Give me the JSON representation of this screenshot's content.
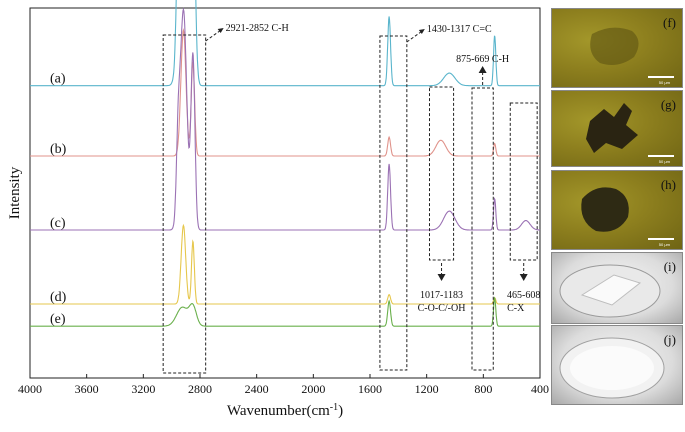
{
  "chart_data": {
    "type": "line",
    "xlabel": "Wavenumber(cm",
    "xlabel_sup": "-1",
    "xlabel_close": ")",
    "ylabel": "Intensity",
    "xlim": [
      4000,
      400
    ],
    "xticks": [
      4000,
      3600,
      3200,
      2800,
      2400,
      2000,
      1600,
      1200,
      800,
      400
    ],
    "series": [
      {
        "name": "(a)",
        "color": "#5ab5cc",
        "offset": 0.79,
        "scale": 0.85,
        "peaks": [
          [
            2917,
            0.68,
            28
          ],
          [
            2850,
            0.6,
            16
          ],
          [
            2955,
            0.26,
            12
          ],
          [
            1465,
            0.22,
            10
          ],
          [
            1040,
            0.04,
            40
          ],
          [
            720,
            0.16,
            8
          ]
        ]
      },
      {
        "name": "(b)",
        "color": "#e0938b",
        "offset": 0.6,
        "scale": 0.85,
        "peaks": [
          [
            2917,
            0.4,
            18
          ],
          [
            2850,
            0.3,
            12
          ],
          [
            1465,
            0.06,
            10
          ],
          [
            1100,
            0.05,
            35
          ],
          [
            720,
            0.04,
            8
          ]
        ]
      },
      {
        "name": "(c)",
        "color": "#9b72b4",
        "offset": 0.4,
        "scale": 0.85,
        "peaks": [
          [
            2917,
            0.7,
            24
          ],
          [
            2850,
            0.55,
            14
          ],
          [
            2955,
            0.2,
            12
          ],
          [
            1465,
            0.21,
            10
          ],
          [
            1040,
            0.06,
            40
          ],
          [
            720,
            0.1,
            8
          ],
          [
            500,
            0.03,
            30
          ]
        ]
      },
      {
        "name": "(d)",
        "color": "#e6c74c",
        "offset": 0.2,
        "scale": 0.85,
        "peaks": [
          [
            2917,
            0.25,
            16
          ],
          [
            2850,
            0.2,
            10
          ],
          [
            1465,
            0.03,
            10
          ],
          [
            720,
            0.02,
            8
          ]
        ]
      },
      {
        "name": "(e)",
        "color": "#6ab04c",
        "offset": 0.14,
        "scale": 0.85,
        "peaks": [
          [
            2925,
            0.06,
            40
          ],
          [
            2850,
            0.06,
            25
          ],
          [
            1465,
            0.08,
            10
          ],
          [
            720,
            0.09,
            8
          ]
        ]
      }
    ],
    "annotations": [
      {
        "text": "2921-2852 C-H",
        "range": [
          3060,
          2760
        ]
      },
      {
        "text": "1430-1317 C=C",
        "range": [
          1530,
          1340
        ]
      },
      {
        "text": "875-669 C-H",
        "range": [
          880,
          730
        ]
      },
      {
        "text": "1017-1183",
        "line2": "C-O-C/-OH",
        "range": [
          1180,
          1010
        ]
      },
      {
        "text": "465-608",
        "line2": "C-X",
        "range": [
          610,
          420
        ]
      }
    ]
  },
  "panels": [
    {
      "label": "(f)",
      "scale": "50 μm"
    },
    {
      "label": "(g)",
      "scale": "50 μm"
    },
    {
      "label": "(h)",
      "scale": "50 μm"
    },
    {
      "label": "(i)"
    },
    {
      "label": "(j)"
    }
  ]
}
